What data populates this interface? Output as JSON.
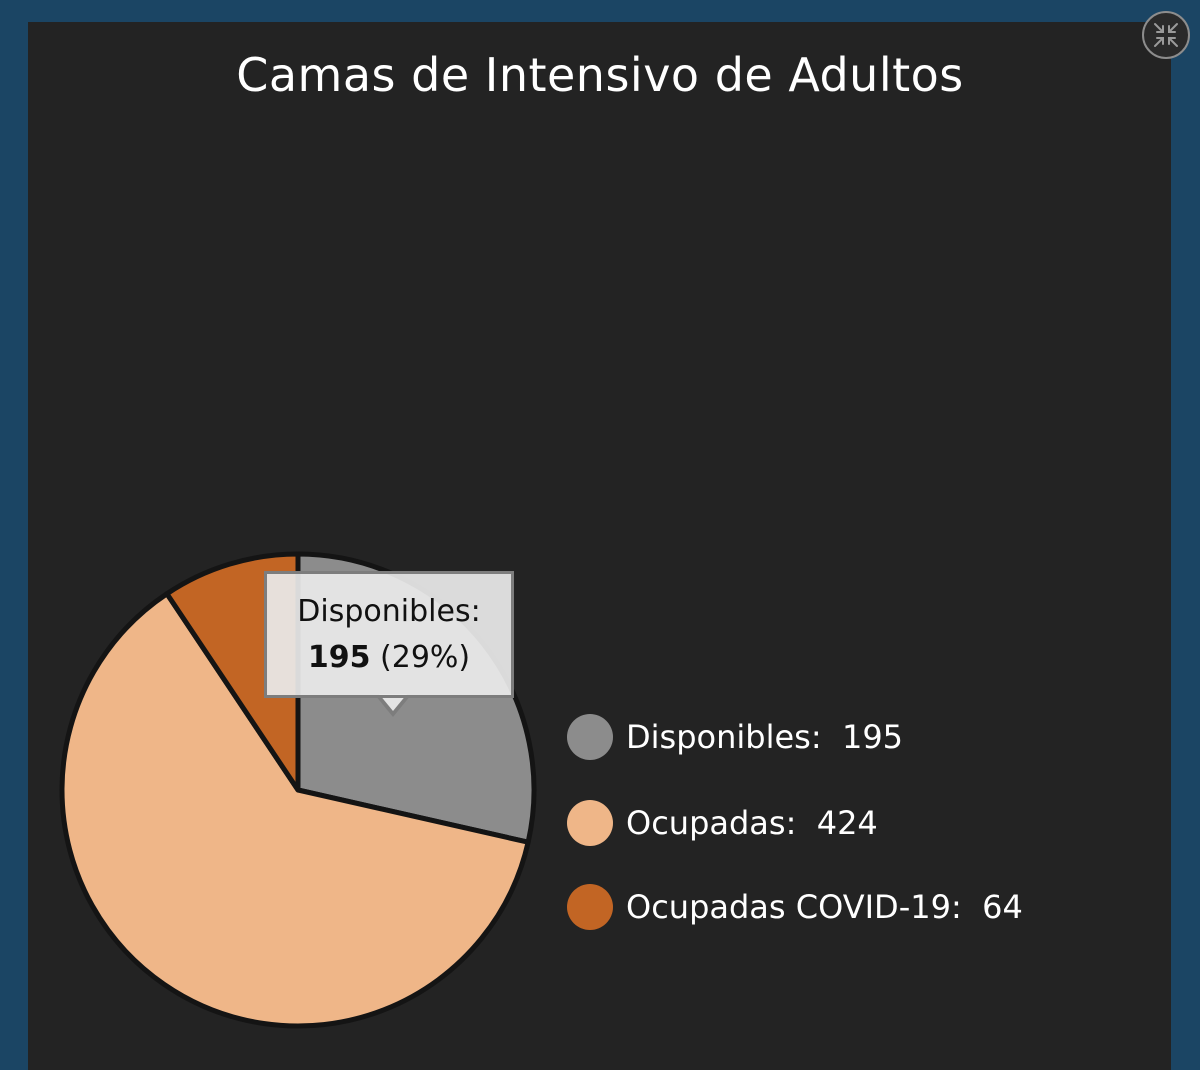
{
  "chart_data": {
    "type": "pie",
    "title": "Camas de Intensivo de Adultos",
    "categories": [
      "Disponibles",
      "Ocupadas",
      "Ocupadas COVID-19"
    ],
    "values": [
      195,
      424,
      64
    ],
    "colors": [
      "#8c8c8c",
      "#efb688",
      "#c26524"
    ],
    "legend": {
      "position": "right",
      "items": [
        {
          "label": "Disponibles:  195",
          "color": "#8c8c8c"
        },
        {
          "label": "Ocupadas:  424",
          "color": "#efb688"
        },
        {
          "label": "Ocupadas COVID-19:  64",
          "color": "#c26524"
        }
      ]
    },
    "tooltip": {
      "category": "Disponibles:",
      "value": "195",
      "percent": "(29%)"
    }
  },
  "controls": {
    "collapse_icon": "collapse-arrows-icon"
  },
  "colors": {
    "background": "#1b4564",
    "panel": "#232323",
    "text": "#ffffff"
  }
}
